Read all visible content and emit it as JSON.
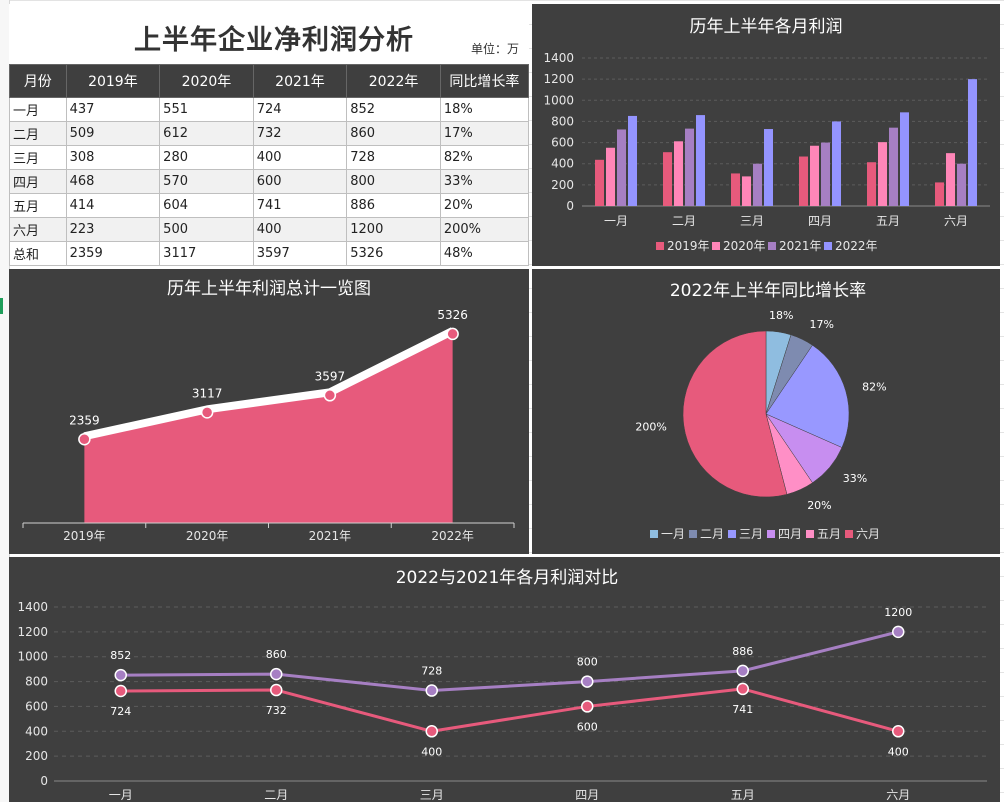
{
  "table": {
    "title": "上半年企业净利润分析",
    "unit": "单位：万",
    "headers": [
      "月份",
      "2019年",
      "2020年",
      "2021年",
      "2022年",
      "同比增长率"
    ],
    "rows": [
      [
        "一月",
        "437",
        "551",
        "724",
        "852",
        "18%"
      ],
      [
        "二月",
        "509",
        "612",
        "732",
        "860",
        "17%"
      ],
      [
        "三月",
        "308",
        "280",
        "400",
        "728",
        "82%"
      ],
      [
        "四月",
        "468",
        "570",
        "600",
        "800",
        "33%"
      ],
      [
        "五月",
        "414",
        "604",
        "741",
        "886",
        "20%"
      ],
      [
        "六月",
        "223",
        "500",
        "400",
        "1200",
        "200%"
      ],
      [
        "总和",
        "2359",
        "3117",
        "3597",
        "5326",
        "48%"
      ]
    ]
  },
  "chart_data": [
    {
      "id": "monthly-bar",
      "type": "bar",
      "title": "历年上半年各月利润",
      "categories": [
        "一月",
        "二月",
        "三月",
        "四月",
        "五月",
        "六月"
      ],
      "series": [
        {
          "name": "2019年",
          "values": [
            437,
            509,
            308,
            468,
            414,
            223
          ],
          "color": "#e75a7c"
        },
        {
          "name": "2020年",
          "values": [
            551,
            612,
            280,
            570,
            604,
            500
          ],
          "color": "#ff86b8"
        },
        {
          "name": "2021年",
          "values": [
            724,
            732,
            400,
            600,
            741,
            400
          ],
          "color": "#a67fc3"
        },
        {
          "name": "2022年",
          "values": [
            852,
            860,
            728,
            800,
            886,
            1200
          ],
          "color": "#9494ff"
        }
      ],
      "ylim": [
        0,
        1400
      ],
      "yticks": [
        0,
        200,
        400,
        600,
        800,
        1000,
        1200,
        1400
      ],
      "grid": true,
      "legend": "bottom"
    },
    {
      "id": "total-area",
      "type": "area",
      "title": "历年上半年利润总计一览图",
      "categories": [
        "2019年",
        "2020年",
        "2021年",
        "2022年"
      ],
      "values": [
        2359,
        3117,
        3597,
        5326
      ],
      "data_labels": [
        "2359",
        "3117",
        "3597",
        "5326"
      ],
      "ylim": [
        0,
        6000
      ],
      "color": "#e75a7c",
      "grid": false
    },
    {
      "id": "growth-pie",
      "type": "pie",
      "title": "2022年上半年同比增长率",
      "categories": [
        "一月",
        "二月",
        "三月",
        "四月",
        "五月",
        "六月"
      ],
      "values": [
        18,
        17,
        82,
        33,
        20,
        200
      ],
      "data_labels": [
        "18%",
        "17%",
        "82%",
        "33%",
        "20%",
        "200%"
      ],
      "colors": [
        "#8fbde0",
        "#7e8bb0",
        "#9898ff",
        "#c78ef0",
        "#ff8fc6",
        "#e75a7c"
      ],
      "legend": "bottom"
    },
    {
      "id": "compare-line",
      "type": "line",
      "title": "2022与2021年各月利润对比",
      "categories": [
        "一月",
        "二月",
        "三月",
        "四月",
        "五月",
        "六月"
      ],
      "series": [
        {
          "name": "2022年",
          "values": [
            852,
            860,
            728,
            800,
            886,
            1200
          ],
          "data_labels": [
            "852",
            "860",
            "728",
            "800",
            "886",
            "1200"
          ],
          "color": "#a67fc3"
        },
        {
          "name": "2021年",
          "values": [
            724,
            732,
            400,
            600,
            741,
            400
          ],
          "data_labels": [
            "724",
            "732",
            "400",
            "600",
            "741",
            "400"
          ],
          "color": "#e75a7c"
        }
      ],
      "ylim": [
        0,
        1400
      ],
      "yticks": [
        0,
        200,
        400,
        600,
        800,
        1000,
        1200,
        1400
      ],
      "grid": true
    }
  ]
}
